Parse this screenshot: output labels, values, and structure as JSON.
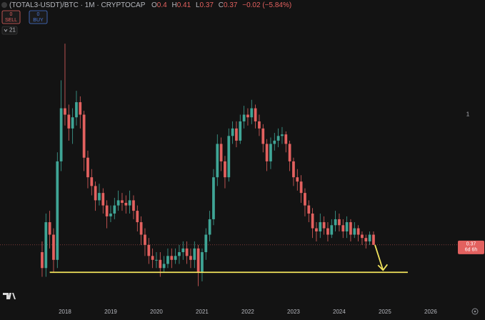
{
  "toolbar": {
    "sell": {
      "count": 0,
      "label": "SELL"
    },
    "buy": {
      "count": 0,
      "label": "BUY"
    },
    "interval_count": 21
  },
  "chart_data": {
    "type": "candlestick",
    "symbol": "(TOTAL3-USDT)/BTC · 1M · CRYPTOCAP",
    "ohlc": [
      {
        "key": "O",
        "value": 0.4
      },
      {
        "key": "H",
        "value": 0.41
      },
      {
        "key": "L",
        "value": 0.37
      },
      {
        "key": "C",
        "value": 0.37
      }
    ],
    "change": "−0.02 (−5.84%)",
    "categories": [
      null,
      null,
      null,
      null,
      null,
      null,
      "2018",
      null,
      null,
      null,
      null,
      null,
      null,
      null,
      null,
      null,
      null,
      null,
      "2019",
      null,
      null,
      null,
      null,
      null,
      null,
      null,
      null,
      null,
      null,
      null,
      "2020",
      null,
      null,
      null,
      null,
      null,
      null,
      null,
      null,
      null,
      null,
      null,
      "2021",
      null,
      null,
      null,
      null,
      null,
      null,
      null,
      null,
      null,
      null,
      null,
      "2022",
      null,
      null,
      null,
      null,
      null,
      null,
      null,
      null,
      null,
      null,
      null,
      "2023",
      null,
      null,
      null,
      null,
      null,
      null,
      null,
      null,
      null,
      null,
      null,
      "2024",
      null,
      null,
      null,
      null,
      null,
      null,
      null,
      null,
      null,
      null,
      null,
      "2025",
      null,
      null,
      null,
      null,
      null,
      null,
      null,
      null,
      null,
      null,
      null,
      "2026",
      null,
      null,
      null,
      null,
      null,
      null
    ],
    "open": [
      0.35,
      0.31,
      0.44,
      0.4,
      0.33,
      0.7,
      1.05,
      1.0,
      0.9,
      0.98,
      1.1,
      1.0,
      0.72,
      0.62,
      0.58,
      0.52,
      0.55,
      0.5,
      0.46,
      0.47,
      0.5,
      0.52,
      0.51,
      0.5,
      0.52,
      0.48,
      0.44,
      0.4,
      0.37,
      0.34,
      0.33,
      0.33,
      0.31,
      0.32,
      0.34,
      0.33,
      0.34,
      0.35,
      0.36,
      0.34,
      0.33,
      0.36,
      0.3,
      0.35,
      0.4,
      0.45,
      0.62,
      0.8,
      0.7,
      0.62,
      0.85,
      0.9,
      0.82,
      0.95,
      1.0,
      0.98,
      1.05,
      0.95,
      0.9,
      0.8,
      0.7,
      0.8,
      0.82,
      0.85,
      0.86,
      0.8,
      0.7,
      0.62,
      0.6,
      0.55,
      0.5,
      0.47,
      0.42,
      0.41,
      0.44,
      0.42,
      0.4,
      0.43,
      0.45,
      0.43,
      0.41,
      0.44,
      0.4,
      0.42,
      0.4,
      0.39,
      0.38,
      0.4,
      null,
      null,
      null,
      null,
      null,
      null,
      null,
      null,
      null,
      null,
      null,
      null,
      null,
      null,
      null,
      null,
      null,
      null,
      null,
      null,
      null
    ],
    "high": [
      0.38,
      0.47,
      0.48,
      0.42,
      0.75,
      1.3,
      1.72,
      1.08,
      1.05,
      1.2,
      1.15,
      1.03,
      0.76,
      0.66,
      0.6,
      0.59,
      0.57,
      0.52,
      0.5,
      0.53,
      0.56,
      0.55,
      0.54,
      0.56,
      0.54,
      0.5,
      0.46,
      0.42,
      0.39,
      0.36,
      0.35,
      0.35,
      0.34,
      0.36,
      0.36,
      0.36,
      0.37,
      0.38,
      0.38,
      0.36,
      0.38,
      0.37,
      0.36,
      0.42,
      0.48,
      0.66,
      0.86,
      0.84,
      0.73,
      0.9,
      0.95,
      0.95,
      1.0,
      1.07,
      1.05,
      1.12,
      1.08,
      1.0,
      0.93,
      0.83,
      0.84,
      0.87,
      0.9,
      0.91,
      0.88,
      0.82,
      0.72,
      0.66,
      0.63,
      0.57,
      0.52,
      0.49,
      0.44,
      0.47,
      0.46,
      0.44,
      0.45,
      0.48,
      0.47,
      0.45,
      0.46,
      0.45,
      0.44,
      0.43,
      0.41,
      0.4,
      0.41,
      0.41,
      null,
      null,
      null,
      null,
      null,
      null,
      null,
      null,
      null,
      null,
      null,
      null,
      null,
      null,
      null,
      null,
      null,
      null,
      null,
      null,
      null
    ],
    "low": [
      0.29,
      0.29,
      0.36,
      0.3,
      0.31,
      0.65,
      0.92,
      0.82,
      0.8,
      0.92,
      0.9,
      0.65,
      0.57,
      0.54,
      0.48,
      0.5,
      0.47,
      0.42,
      0.44,
      0.45,
      0.48,
      0.48,
      0.47,
      0.47,
      0.45,
      0.41,
      0.37,
      0.34,
      0.32,
      0.31,
      0.31,
      0.29,
      0.3,
      0.31,
      0.31,
      0.32,
      0.32,
      0.33,
      0.32,
      0.31,
      0.31,
      0.27,
      0.28,
      0.33,
      0.38,
      0.43,
      0.58,
      0.65,
      0.57,
      0.6,
      0.8,
      0.78,
      0.8,
      0.9,
      0.92,
      0.93,
      0.9,
      0.85,
      0.75,
      0.65,
      0.66,
      0.76,
      0.78,
      0.8,
      0.75,
      0.65,
      0.58,
      0.56,
      0.51,
      0.46,
      0.44,
      0.39,
      0.38,
      0.39,
      0.4,
      0.38,
      0.39,
      0.41,
      0.41,
      0.39,
      0.39,
      0.38,
      0.39,
      0.38,
      0.37,
      0.36,
      0.37,
      0.37,
      null,
      null,
      null,
      null,
      null,
      null,
      null,
      null,
      null,
      null,
      null,
      null,
      null,
      null,
      null,
      null,
      null,
      null,
      null,
      null,
      null
    ],
    "close": [
      0.31,
      0.44,
      0.4,
      0.33,
      0.7,
      1.05,
      1.0,
      0.9,
      0.98,
      1.1,
      1.0,
      0.72,
      0.62,
      0.58,
      0.52,
      0.55,
      0.5,
      0.46,
      0.47,
      0.5,
      0.52,
      0.51,
      0.5,
      0.52,
      0.48,
      0.44,
      0.4,
      0.37,
      0.34,
      0.33,
      0.33,
      0.31,
      0.32,
      0.34,
      0.33,
      0.34,
      0.35,
      0.36,
      0.34,
      0.33,
      0.36,
      0.3,
      0.35,
      0.4,
      0.45,
      0.62,
      0.8,
      0.7,
      0.62,
      0.85,
      0.9,
      0.82,
      0.95,
      1.0,
      0.98,
      1.05,
      0.95,
      0.9,
      0.8,
      0.7,
      0.8,
      0.82,
      0.85,
      0.86,
      0.8,
      0.7,
      0.62,
      0.6,
      0.55,
      0.5,
      0.47,
      0.42,
      0.41,
      0.44,
      0.42,
      0.4,
      0.43,
      0.45,
      0.43,
      0.41,
      0.44,
      0.4,
      0.42,
      0.4,
      0.39,
      0.38,
      0.4,
      0.37,
      null,
      null,
      null,
      null,
      null,
      null,
      null,
      null,
      null,
      null,
      null,
      null,
      null,
      null,
      null,
      null,
      null,
      null,
      null,
      null,
      null
    ],
    "up_color": "#3fa596",
    "down_color": "#e3615f",
    "log": true,
    "grid": false,
    "ylim": [
      0.23,
      2.4
    ],
    "yticks": [
      1
    ],
    "last_price": 0.37,
    "countdown": "6d 6h",
    "hline": {
      "value": 0.3,
      "color": "#f1e35c"
    }
  }
}
